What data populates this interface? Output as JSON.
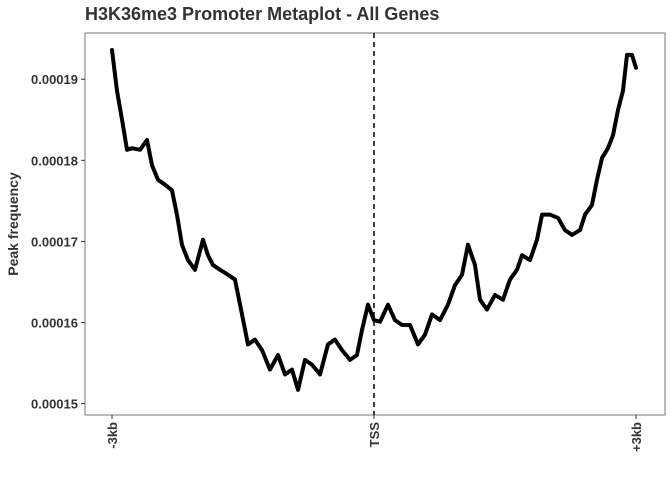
{
  "chart_data": {
    "type": "line",
    "title": "H3K36me3 Promoter Metaplot - All Genes",
    "y_label": "Peak frequency",
    "x": [
      -3000,
      -2943,
      -2885,
      -2828,
      -2771,
      -2679,
      -2599,
      -2542,
      -2473,
      -2393,
      -2313,
      -2256,
      -2199,
      -2130,
      -2050,
      -1958,
      -1901,
      -1844,
      -1763,
      -1672,
      -1592,
      -1511,
      -1443,
      -1363,
      -1282,
      -1191,
      -1099,
      -1019,
      -939,
      -870,
      -790,
      -710,
      -618,
      -527,
      -447,
      -366,
      -275,
      -195,
      -137,
      -69,
      0,
      69,
      160,
      240,
      321,
      412,
      504,
      584,
      664,
      756,
      847,
      927,
      1008,
      1076,
      1156,
      1214,
      1294,
      1385,
      1477,
      1557,
      1637,
      1695,
      1786,
      1866,
      1924,
      2016,
      2107,
      2187,
      2267,
      2359,
      2416,
      2496,
      2553,
      2611,
      2679,
      2737,
      2794,
      2851,
      2897,
      2954,
      3000
    ],
    "values": [
      0.0001936,
      0.0001886,
      0.000185,
      0.0001813,
      0.0001815,
      0.0001813,
      0.0001825,
      0.0001794,
      0.0001776,
      0.000177,
      0.0001763,
      0.0001733,
      0.0001696,
      0.0001677,
      0.0001665,
      0.0001702,
      0.0001683,
      0.0001671,
      0.0001665,
      0.0001659,
      0.0001653,
      0.000161,
      0.0001573,
      0.0001579,
      0.0001566,
      0.0001542,
      0.000156,
      0.0001536,
      0.0001542,
      0.0001517,
      0.0001554,
      0.0001548,
      0.0001536,
      0.0001573,
      0.0001579,
      0.0001566,
      0.0001554,
      0.000156,
      0.0001591,
      0.0001622,
      0.0001603,
      0.0001601,
      0.0001622,
      0.0001603,
      0.0001597,
      0.0001597,
      0.0001573,
      0.0001585,
      0.000161,
      0.0001603,
      0.0001622,
      0.0001646,
      0.0001659,
      0.0001696,
      0.0001671,
      0.0001628,
      0.0001616,
      0.0001634,
      0.0001628,
      0.0001653,
      0.0001665,
      0.0001683,
      0.0001677,
      0.0001702,
      0.0001733,
      0.0001733,
      0.0001729,
      0.0001714,
      0.0001708,
      0.0001714,
      0.0001733,
      0.0001745,
      0.0001776,
      0.0001803,
      0.0001815,
      0.0001831,
      0.0001862,
      0.0001886,
      0.000193,
      0.000193,
      0.0001914
    ],
    "color": "#000000",
    "xlim": [
      -3309,
      3332
    ],
    "xticks": [
      {
        "value": -3000,
        "label": "-3kb"
      },
      {
        "value": 0,
        "label": "TSS"
      },
      {
        "value": 3000,
        "label": "+3kb"
      }
    ],
    "ylim": [
      0.0001486,
      0.0001957
    ],
    "yticks": [
      0.00015,
      0.00016,
      0.00017,
      0.00018,
      0.00019
    ],
    "vline": 0,
    "grid": false
  }
}
